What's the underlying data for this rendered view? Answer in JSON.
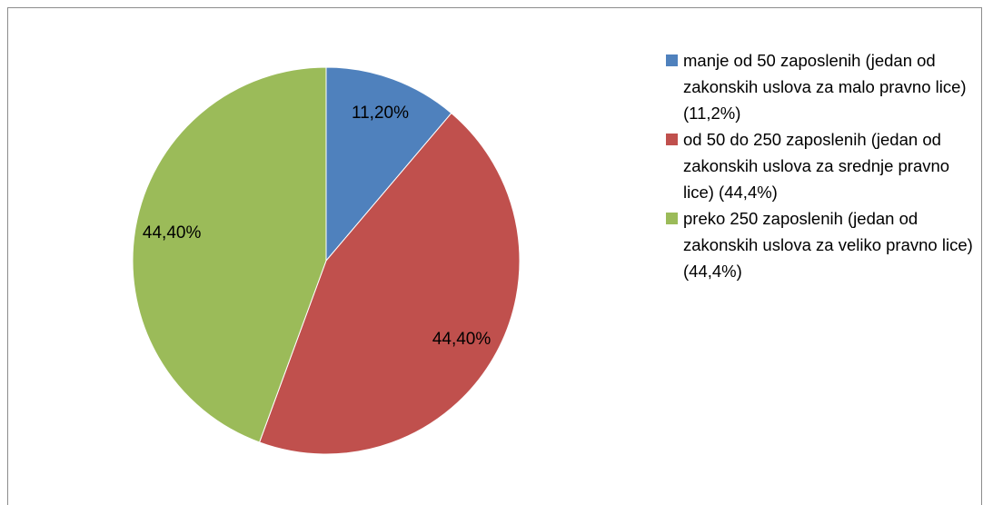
{
  "chart_data": {
    "type": "pie",
    "categories": [
      "manje od 50 zaposlenih (jedan od zakonskih uslova za malo pravno lice)  (11,2%)",
      "od 50 do 250 zaposlenih (jedan od zakonskih uslova za srednje pravno lice)  (44,4%)",
      "preko 250 zaposlenih (jedan od zakonskih uslova za veliko pravno lice)  (44,4%)"
    ],
    "values": [
      11.2,
      44.4,
      44.4
    ],
    "value_labels": [
      "11,20%",
      "44,40%",
      "44,40%"
    ],
    "colors": [
      "#4f81bd",
      "#c0504d",
      "#9bbb59"
    ],
    "legend": "right"
  }
}
